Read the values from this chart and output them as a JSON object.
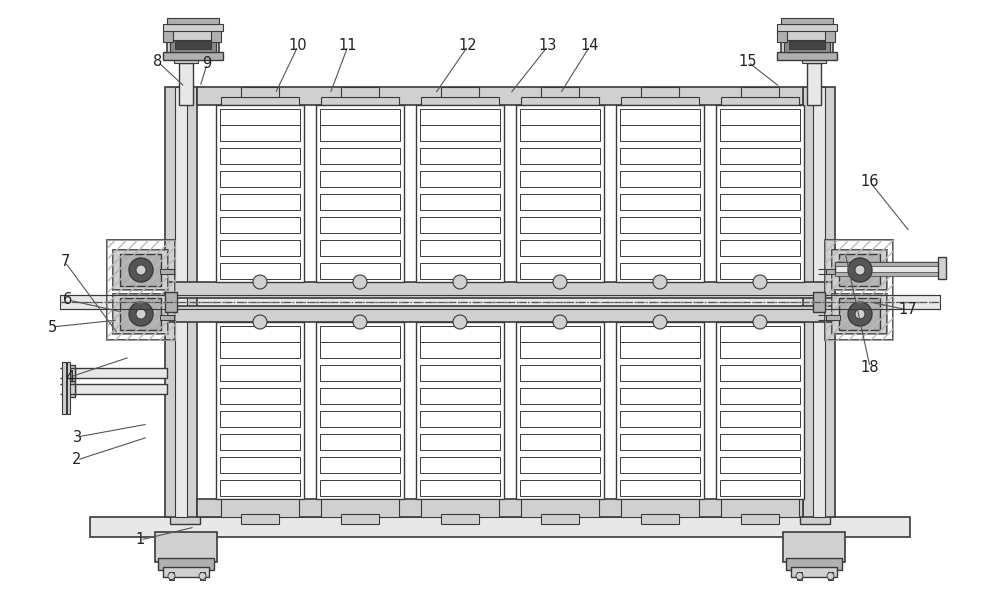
{
  "bg_color": "#ffffff",
  "lc": "#3a3a3a",
  "gray1": "#d0d0d0",
  "gray2": "#b0b0b0",
  "gray3": "#888888",
  "gray4": "#555555",
  "gray_light": "#e8e8e8",
  "hatch_gray": "#aaaaaa",
  "fig_w": 10.0,
  "fig_h": 5.92,
  "dpi": 100,
  "annotations": [
    [
      "1",
      140,
      52,
      195,
      65
    ],
    [
      "2",
      77,
      132,
      148,
      155
    ],
    [
      "3",
      77,
      155,
      148,
      168
    ],
    [
      "4",
      70,
      215,
      130,
      235
    ],
    [
      "5",
      52,
      265,
      118,
      272
    ],
    [
      "6",
      68,
      292,
      122,
      280
    ],
    [
      "7",
      65,
      330,
      118,
      258
    ],
    [
      "8",
      158,
      530,
      185,
      505
    ],
    [
      "9",
      207,
      528,
      200,
      505
    ],
    [
      "10",
      298,
      546,
      275,
      498
    ],
    [
      "11",
      348,
      546,
      330,
      498
    ],
    [
      "12",
      468,
      546,
      435,
      498
    ],
    [
      "13",
      548,
      546,
      510,
      498
    ],
    [
      "14",
      590,
      546,
      560,
      498
    ],
    [
      "15",
      748,
      530,
      780,
      505
    ],
    [
      "16",
      870,
      410,
      910,
      360
    ],
    [
      "17",
      908,
      282,
      870,
      290
    ],
    [
      "18",
      870,
      225,
      845,
      340
    ]
  ]
}
